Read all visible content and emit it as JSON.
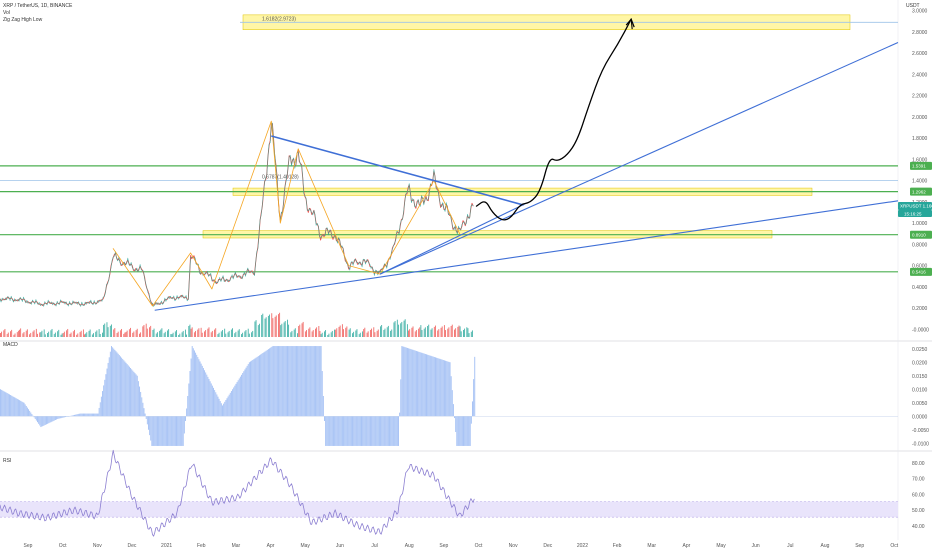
{
  "header": {
    "symbol": "XRP / TetherUS, 1D, BINANCE",
    "indicator_vol": "Vol",
    "indicator_zigzag": "Zig Zag High Low",
    "currency": "USDT"
  },
  "colors": {
    "up": "#26a69a",
    "down": "#ef5350",
    "level": "#4caf50",
    "trend": "#3f6fd6",
    "zone": "#fff176",
    "zigzag": "#f5a623",
    "rsi": "#8c7fd1",
    "macd": "#a9c4f5",
    "arrow": "#000000"
  },
  "chart_data": [
    {
      "type": "line",
      "name": "price",
      "title": "XRP / TetherUS, 1D, BINANCE",
      "y_unit": "USDT",
      "yticks": [
        "3.0000",
        "2.8000",
        "2.6000",
        "2.4000",
        "2.2000",
        "2.0000",
        "1.8000",
        "1.6000",
        "1.4000",
        "1.2000",
        "1.0000",
        "0.8000",
        "0.6000",
        "0.4000",
        "0.2000",
        "-0.0000"
      ],
      "xticks": [
        "Sep",
        "Oct",
        "Nov",
        "Dec",
        "2021",
        "Feb",
        "Mar",
        "Apr",
        "May",
        "Jun",
        "Jul",
        "Aug",
        "Sep",
        "Oct",
        "Nov",
        "Dec",
        "2022",
        "Feb",
        "Mar",
        "Apr",
        "May",
        "Jun",
        "Jul",
        "Aug",
        "Sep",
        "Oct"
      ],
      "ylim": [
        -0.1,
        3.1
      ],
      "price_tags": [
        {
          "label": "1.5391",
          "value": 1.5391,
          "color": "#4caf50"
        },
        {
          "label": "1.2962",
          "value": 1.2962,
          "color": "#4caf50"
        },
        {
          "label": "XRPUSDT  1.1607",
          "value": 1.1607,
          "color": "#26a69a"
        },
        {
          "label": "0.8910",
          "value": 0.891,
          "color": "#4caf50"
        },
        {
          "label": "0.5416",
          "value": 0.5416,
          "color": "#4caf50"
        }
      ],
      "countdown": "15:16:25",
      "levels": [
        1.5391,
        1.2962,
        0.891,
        0.5416
      ],
      "annotations": [
        {
          "label": "0.6787(1.40128)",
          "value": 1.4
        },
        {
          "label": "1.6182(2.9723)",
          "value": 2.89
        }
      ],
      "zones": [
        {
          "from": 1.26,
          "to": 1.33,
          "start": "Mar",
          "end": "Jul"
        },
        {
          "from": 0.86,
          "to": 0.93,
          "start": "Feb",
          "end": "Jul"
        },
        {
          "from": 2.82,
          "to": 2.96,
          "start": "Mar",
          "end": "Jul"
        }
      ],
      "price_series": [
        [
          "2020-08-15",
          0.29
        ],
        [
          "2020-09-01",
          0.28
        ],
        [
          "2020-09-20",
          0.24
        ],
        [
          "2020-10-10",
          0.25
        ],
        [
          "2020-10-30",
          0.24
        ],
        [
          "2020-11-15",
          0.27
        ],
        [
          "2020-11-24",
          0.68
        ],
        [
          "2020-12-05",
          0.62
        ],
        [
          "2020-12-20",
          0.55
        ],
        [
          "2020-12-29",
          0.22
        ],
        [
          "2021-01-05",
          0.25
        ],
        [
          "2021-01-15",
          0.3
        ],
        [
          "2021-01-30",
          0.3
        ],
        [
          "2021-02-01",
          0.7
        ],
        [
          "2021-02-10",
          0.55
        ],
        [
          "2021-02-25",
          0.45
        ],
        [
          "2021-03-15",
          0.5
        ],
        [
          "2021-03-30",
          0.55
        ],
        [
          "2021-04-05",
          1.05
        ],
        [
          "2021-04-14",
          1.96
        ],
        [
          "2021-04-22",
          1.05
        ],
        [
          "2021-05-01",
          1.6
        ],
        [
          "2021-05-08",
          1.65
        ],
        [
          "2021-05-14",
          1.25
        ],
        [
          "2021-05-20",
          1.1
        ],
        [
          "2021-05-28",
          0.9
        ],
        [
          "2021-06-10",
          0.9
        ],
        [
          "2021-06-22",
          0.6
        ],
        [
          "2021-07-05",
          0.65
        ],
        [
          "2021-07-20",
          0.52
        ],
        [
          "2021-08-01",
          0.75
        ],
        [
          "2021-08-14",
          1.3
        ],
        [
          "2021-08-25",
          1.15
        ],
        [
          "2021-09-06",
          1.4
        ],
        [
          "2021-09-15",
          1.15
        ],
        [
          "2021-09-29",
          0.9
        ],
        [
          "2021-10-06",
          1.08
        ],
        [
          "2021-10-12",
          1.16
        ]
      ],
      "trendlines": [
        {
          "from": [
            "2021-04-14",
            1.82
          ],
          "to": [
            "2021-11-25",
            1.17
          ]
        },
        {
          "from": [
            "2021-07-20",
            0.52
          ],
          "to": [
            "2021-11-28",
            1.19
          ]
        },
        {
          "from": [
            "2021-07-20",
            0.52
          ],
          "to": [
            "2022-10-25",
            2.7
          ]
        },
        {
          "from": [
            "2020-12-31",
            0.18
          ],
          "to": [
            "2022-10-25",
            1.21
          ]
        }
      ],
      "zigzag": [
        [
          "2020-11-24",
          0.76
        ],
        [
          "2020-12-29",
          0.22
        ],
        [
          "2021-02-01",
          0.72
        ],
        [
          "2021-02-20",
          0.38
        ],
        [
          "2021-04-14",
          1.96
        ],
        [
          "2021-04-22",
          1.0
        ],
        [
          "2021-05-08",
          1.7
        ],
        [
          "2021-06-22",
          0.6
        ],
        [
          "2021-07-20",
          0.52
        ],
        [
          "2021-09-06",
          1.4
        ],
        [
          "2021-09-29",
          0.9
        ]
      ],
      "projection": [
        [
          "2021-10-14",
          1.16
        ],
        [
          "2021-10-22",
          1.22
        ],
        [
          "2021-10-28",
          1.1
        ],
        [
          "2021-11-06",
          1.02
        ],
        [
          "2021-11-14",
          1.05
        ],
        [
          "2021-11-22",
          1.18
        ],
        [
          "2021-12-01",
          1.19
        ],
        [
          "2021-12-10",
          1.3
        ],
        [
          "2021-12-18",
          1.62
        ],
        [
          "2021-12-25",
          1.58
        ],
        [
          "2022-01-03",
          1.64
        ],
        [
          "2022-01-12",
          1.78
        ],
        [
          "2022-01-22",
          2.1
        ],
        [
          "2022-02-03",
          2.45
        ],
        [
          "2022-02-17",
          2.68
        ],
        [
          "2022-03-01",
          2.92
        ]
      ]
    },
    {
      "type": "bar",
      "name": "MACD",
      "title": "MACD",
      "yticks": [
        "0.0250",
        "0.0200",
        "0.0150",
        "0.0100",
        "0.0050",
        "0.0000",
        "-0.0050",
        "-0.0100"
      ],
      "ylim": [
        -0.0125,
        0.0275
      ],
      "segments": [
        [
          "2020-08-15",
          0.01
        ],
        [
          "2020-09-05",
          0.005
        ],
        [
          "2020-09-20",
          -0.004
        ],
        [
          "2020-10-05",
          -0.001
        ],
        [
          "2020-10-25",
          0.001
        ],
        [
          "2020-11-10",
          0.001
        ],
        [
          "2020-11-22",
          0.026
        ],
        [
          "2020-12-15",
          0.015
        ],
        [
          "2020-12-28",
          -0.011
        ],
        [
          "2021-01-25",
          -0.011
        ],
        [
          "2021-02-02",
          0.026
        ],
        [
          "2021-03-01",
          0.004
        ],
        [
          "2021-03-25",
          0.02
        ],
        [
          "2021-04-15",
          0.026
        ],
        [
          "2021-05-28",
          0.026
        ],
        [
          "2021-06-01",
          -0.011
        ],
        [
          "2021-08-05",
          -0.011
        ],
        [
          "2021-08-08",
          0.026
        ],
        [
          "2021-09-20",
          0.02
        ],
        [
          "2021-09-26",
          -0.011
        ],
        [
          "2021-10-08",
          -0.011
        ],
        [
          "2021-10-12",
          0.022
        ]
      ]
    },
    {
      "type": "line",
      "name": "RSI",
      "title": "RSI",
      "yticks": [
        "80.00",
        "70.00",
        "60.00",
        "50.00",
        "40.00"
      ],
      "ylim": [
        31,
        87
      ],
      "band": [
        45.5,
        55.5
      ],
      "series": [
        [
          "2020-08-15",
          52
        ],
        [
          "2020-09-01",
          48
        ],
        [
          "2020-09-25",
          45
        ],
        [
          "2020-10-20",
          50
        ],
        [
          "2020-11-10",
          46
        ],
        [
          "2020-11-24",
          86
        ],
        [
          "2020-12-10",
          60
        ],
        [
          "2020-12-29",
          35
        ],
        [
          "2021-01-20",
          48
        ],
        [
          "2021-02-02",
          80
        ],
        [
          "2021-02-20",
          55
        ],
        [
          "2021-03-15",
          58
        ],
        [
          "2021-04-14",
          82
        ],
        [
          "2021-05-01",
          66
        ],
        [
          "2021-05-20",
          42
        ],
        [
          "2021-06-10",
          48
        ],
        [
          "2021-07-01",
          40
        ],
        [
          "2021-07-20",
          36
        ],
        [
          "2021-08-05",
          50
        ],
        [
          "2021-08-14",
          78
        ],
        [
          "2021-09-06",
          72
        ],
        [
          "2021-09-29",
          46
        ],
        [
          "2021-10-12",
          58
        ]
      ]
    }
  ]
}
